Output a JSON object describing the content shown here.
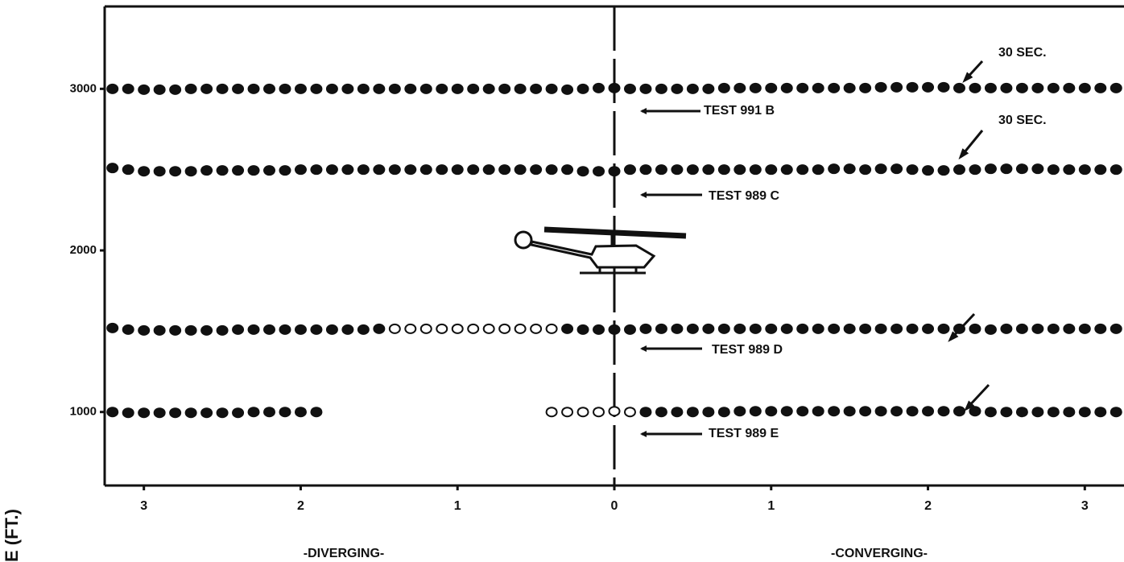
{
  "chart_data": {
    "type": "scatter",
    "x_axis_labels": [
      "-DIVERGING-",
      "-CONVERGING-"
    ],
    "y_label": "E (FT.)",
    "annotations": [
      "30 SEC.",
      "30 SEC."
    ],
    "x": [
      -3.2,
      -3.1,
      -3.0,
      -2.9,
      -2.8,
      -2.7,
      -2.6,
      -2.5,
      -2.4,
      -2.3,
      -2.2,
      -2.1,
      -2.0,
      -1.9,
      -1.8,
      -1.7,
      -1.6,
      -1.5,
      -1.4,
      -1.3,
      -1.2,
      -1.1,
      -1.0,
      -0.9,
      -0.8,
      -0.7,
      -0.6,
      -0.5,
      -0.4,
      -0.3,
      -0.2,
      -0.1,
      0.0,
      0.1,
      0.2,
      0.3,
      0.4,
      0.5,
      0.6,
      0.7,
      0.8,
      0.9,
      1.0,
      1.1,
      1.2,
      1.3,
      1.4,
      1.5,
      1.6,
      1.7,
      1.8,
      1.9,
      2.0,
      2.1,
      2.2,
      2.3,
      2.4,
      2.5,
      2.6,
      2.7,
      2.8,
      2.9,
      3.0,
      3.1,
      3.2
    ],
    "series": [
      {
        "name": "TEST 991 B",
        "color": "#111111",
        "values": [
          3000,
          3000,
          2995,
          2995,
          2995,
          3000,
          3000,
          3000,
          3000,
          3000,
          3000,
          3000,
          3000,
          3000,
          3000,
          3000,
          3000,
          3000,
          3000,
          3000,
          3000,
          3000,
          3000,
          3000,
          3000,
          3000,
          3000,
          3000,
          3000,
          2995,
          3000,
          3005,
          3005,
          3000,
          3000,
          3000,
          3000,
          3000,
          3000,
          3005,
          3005,
          3005,
          3005,
          3005,
          3005,
          3005,
          3005,
          3005,
          3005,
          3010,
          3010,
          3010,
          3010,
          3010,
          3005,
          3005,
          3005,
          3005,
          3005,
          3005,
          3005,
          3005,
          3005,
          3005,
          3005
        ]
      },
      {
        "name": "TEST 989 C",
        "color": "#111111",
        "values": [
          2510,
          2500,
          2490,
          2490,
          2490,
          2490,
          2495,
          2495,
          2495,
          2495,
          2495,
          2495,
          2500,
          2500,
          2500,
          2500,
          2500,
          2500,
          2500,
          2500,
          2500,
          2500,
          2500,
          2500,
          2500,
          2500,
          2500,
          2500,
          2500,
          2500,
          2490,
          2490,
          2490,
          2500,
          2500,
          2500,
          2500,
          2500,
          2500,
          2500,
          2500,
          2500,
          2500,
          2500,
          2500,
          2500,
          2505,
          2505,
          2500,
          2505,
          2505,
          2500,
          2495,
          2495,
          2500,
          2500,
          2505,
          2505,
          2505,
          2505,
          2500,
          2500,
          2500,
          2500,
          2500
        ]
      },
      {
        "name": "TEST 989 D",
        "color": "#111111",
        "hollow_range": [
          -1.45,
          -0.35
        ],
        "values": [
          1520,
          1510,
          1505,
          1505,
          1505,
          1505,
          1505,
          1505,
          1510,
          1510,
          1510,
          1510,
          1510,
          1510,
          1510,
          1510,
          1510,
          1515,
          1515,
          1515,
          1515,
          1515,
          1515,
          1515,
          1515,
          1515,
          1515,
          1515,
          1515,
          1515,
          1510,
          1510,
          1510,
          1510,
          1515,
          1515,
          1515,
          1515,
          1515,
          1515,
          1515,
          1515,
          1515,
          1515,
          1515,
          1515,
          1515,
          1515,
          1515,
          1515,
          1515,
          1515,
          1515,
          1515,
          1515,
          1515,
          1510,
          1515,
          1515,
          1515,
          1515,
          1515,
          1515,
          1515,
          1515
        ]
      },
      {
        "name": "TEST 989 E",
        "color": "#111111",
        "hollow_range": [
          -0.45,
          0.15
        ],
        "values": [
          1000,
          995,
          995,
          995,
          995,
          995,
          995,
          995,
          995,
          1000,
          1000,
          1000,
          1000,
          1000,
          null,
          null,
          null,
          null,
          null,
          null,
          null,
          null,
          null,
          null,
          null,
          null,
          null,
          null,
          1000,
          1000,
          1000,
          1000,
          1005,
          1000,
          1000,
          1000,
          1000,
          1000,
          1000,
          1000,
          1005,
          1005,
          1005,
          1005,
          1005,
          1005,
          1005,
          1005,
          1005,
          1005,
          1005,
          1005,
          1005,
          1005,
          1005,
          1005,
          1000,
          1000,
          1000,
          1000,
          1000,
          1000,
          1000,
          1000,
          1000
        ]
      }
    ],
    "xlim": [
      -3.25,
      3.25
    ],
    "xticks": [
      {
        "value": -3,
        "label": "3"
      },
      {
        "value": -2,
        "label": "2"
      },
      {
        "value": -1,
        "label": "1"
      },
      0,
      1,
      2,
      3
    ],
    "ylim": [
      545,
      3510
    ],
    "yticks": [
      1000,
      2000,
      3000
    ]
  }
}
